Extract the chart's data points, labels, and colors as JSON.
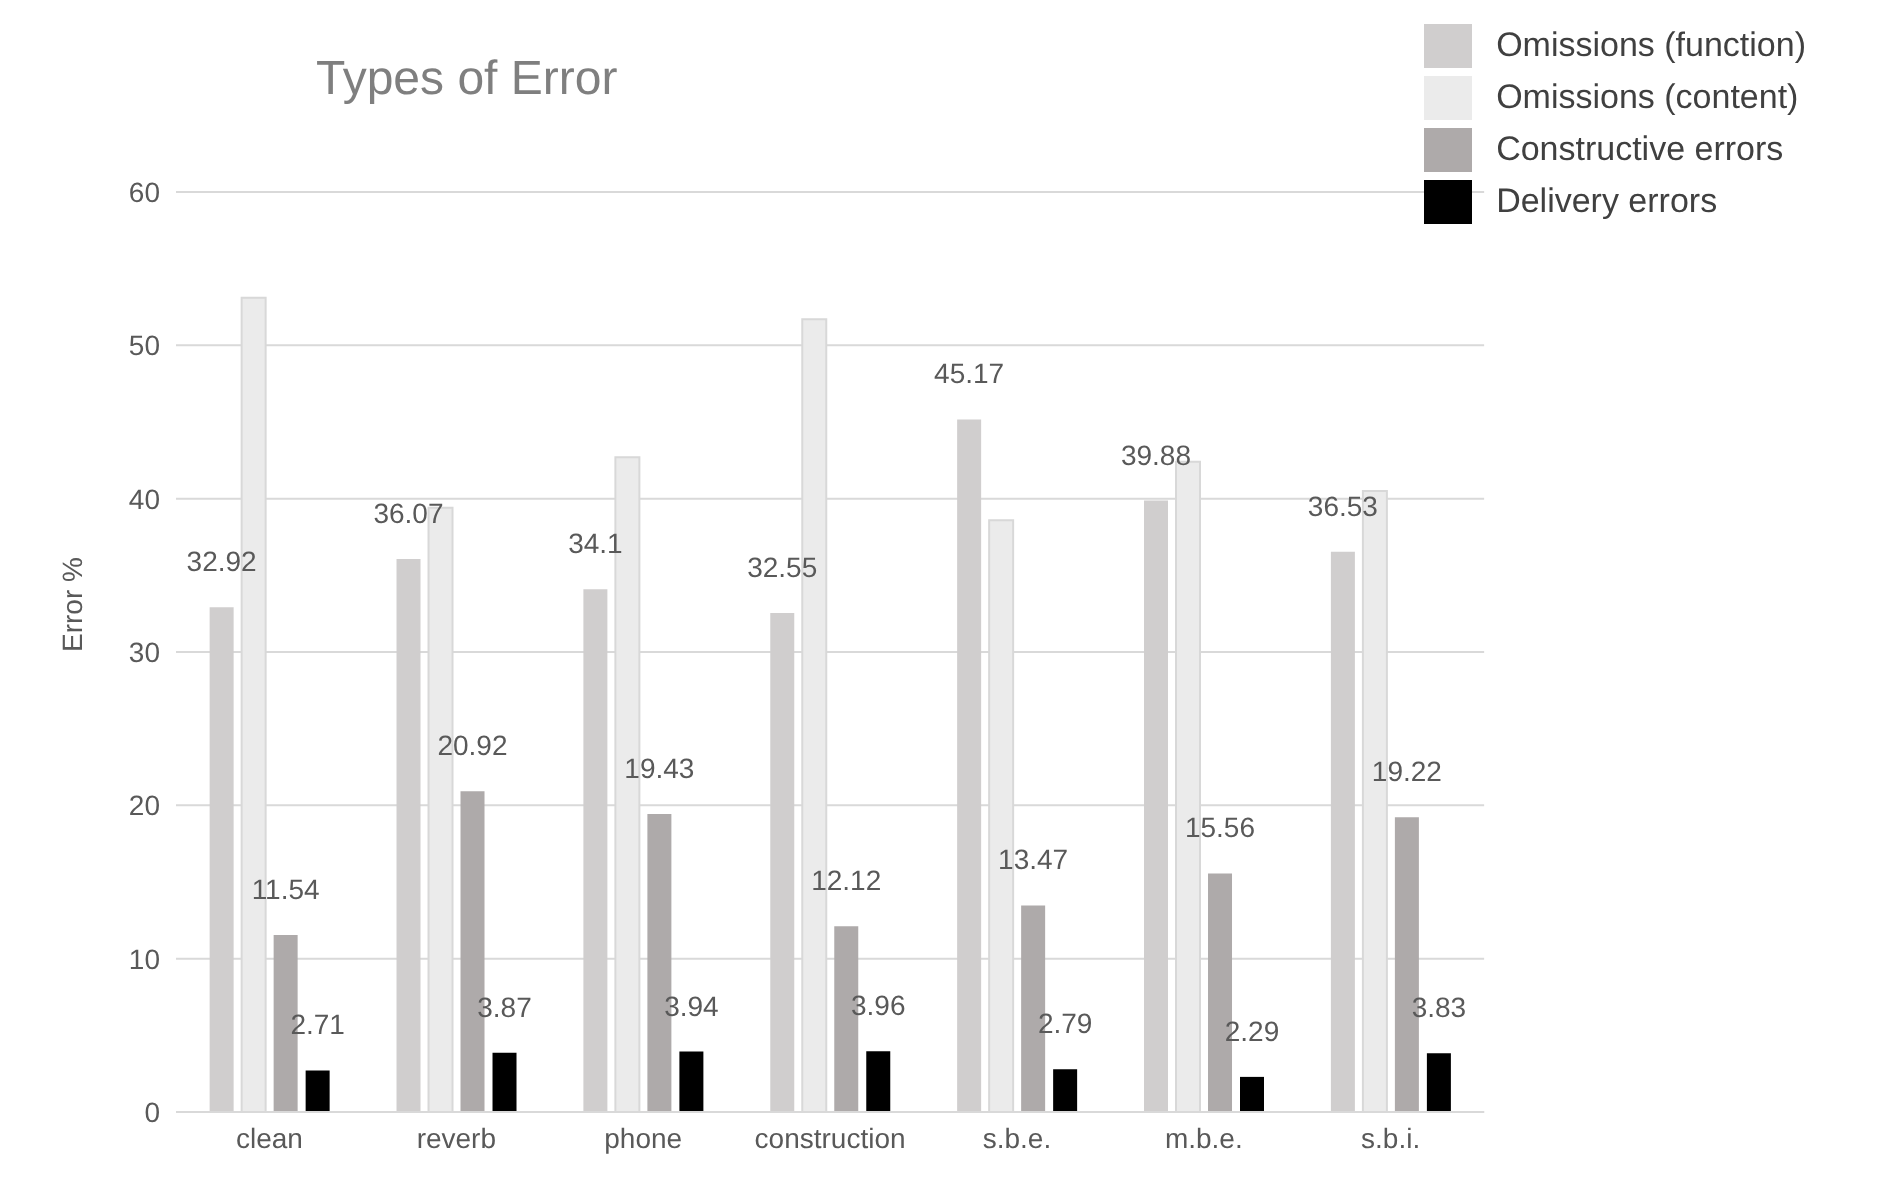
{
  "chart_data": {
    "type": "bar",
    "title": "Types of Error",
    "ylabel": "Error %",
    "categories": [
      "clean",
      "reverb",
      "phone",
      "construction",
      "s.b.e.",
      "m.b.e.",
      "s.b.i."
    ],
    "series": [
      {
        "name": "Omissions (function)",
        "color": "#d0cece",
        "values": [
          32.92,
          36.07,
          34.1,
          32.55,
          45.17,
          39.88,
          36.53
        ],
        "value_labels": [
          "32.92",
          "36.07",
          "34.1",
          "32.55",
          "45.17",
          "39.88",
          "36.53"
        ]
      },
      {
        "name": "Omissions (content)",
        "color": "#ebebeb",
        "values": [
          53.1,
          39.4,
          42.7,
          51.7,
          38.6,
          42.4,
          40.5
        ]
      },
      {
        "name": "Constructive errors",
        "color": "#aeaaaa",
        "values": [
          11.54,
          20.92,
          19.43,
          12.12,
          13.47,
          15.56,
          19.22
        ],
        "value_labels": [
          "11.54",
          "20.92",
          "19.43",
          "12.12",
          "13.47",
          "15.56",
          "19.22"
        ]
      },
      {
        "name": "Delivery errors",
        "color": "#000000",
        "values": [
          2.71,
          3.87,
          3.94,
          3.96,
          2.79,
          2.29,
          3.83
        ],
        "value_labels": [
          "2.71",
          "3.87",
          "3.94",
          "3.96",
          "2.79",
          "2.29",
          "3.83"
        ]
      }
    ],
    "ylim": [
      0,
      60
    ],
    "yticks": [
      0,
      10,
      20,
      30,
      40,
      50,
      60
    ],
    "grid": "y",
    "legend": "top right"
  }
}
